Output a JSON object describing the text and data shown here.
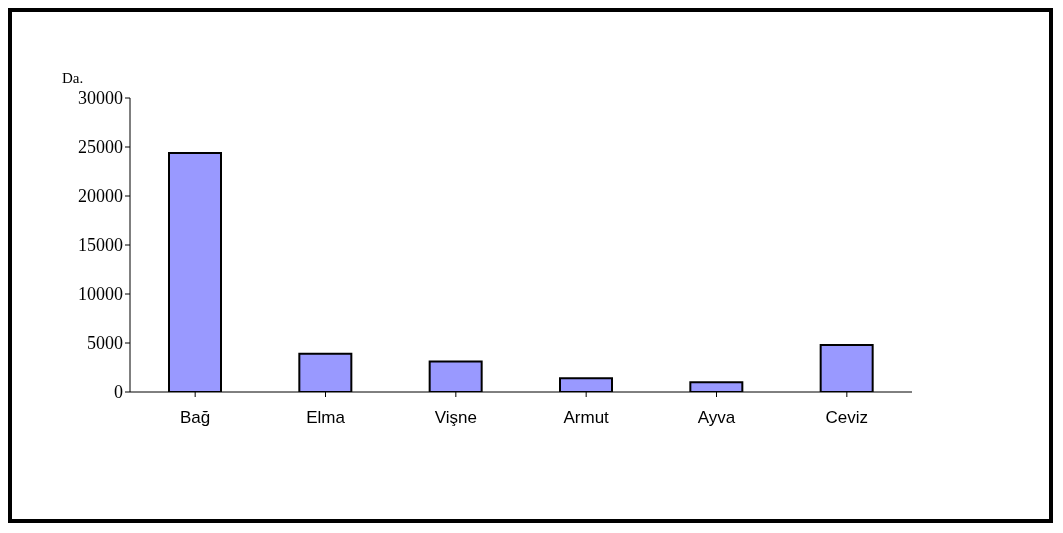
{
  "chart_data": {
    "type": "bar",
    "ylabel": "Da.",
    "categories": [
      "Bağ",
      "Elma",
      "Vişne",
      "Armut",
      "Ayva",
      "Ceviz"
    ],
    "values": [
      24400,
      3900,
      3100,
      1400,
      1000,
      4800
    ],
    "color": "#9999ff",
    "ylim": [
      0,
      30000
    ],
    "yticks": [
      0,
      5000,
      10000,
      15000,
      20000,
      25000,
      30000
    ],
    "grid": false
  }
}
